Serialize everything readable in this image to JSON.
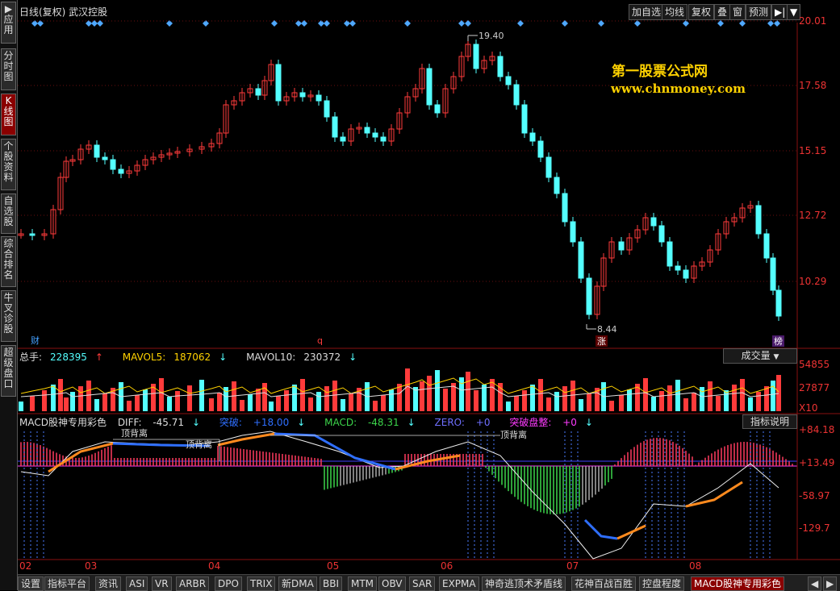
{
  "sidebar": {
    "items": [
      {
        "label": "▶应用",
        "active": false
      },
      {
        "label": "分时图",
        "active": false
      },
      {
        "label": "K线图",
        "active": true
      },
      {
        "label": "个股资料",
        "active": false
      },
      {
        "label": "自选股",
        "active": false
      },
      {
        "label": "综合排名",
        "active": false
      },
      {
        "label": "牛叉诊股",
        "active": false
      },
      {
        "label": "超级盘口",
        "active": false
      }
    ]
  },
  "header": {
    "title": "日线(复权) 武汉控股",
    "buttons": [
      "加自选",
      "均线",
      "复权",
      "叠",
      "窗",
      "预测"
    ]
  },
  "watermark": {
    "line1": "第一股票公式网",
    "line2": "www.chnmoney.com"
  },
  "price_axis": [
    "20.01",
    "17.58",
    "15.15",
    "12.72",
    "10.29"
  ],
  "price_annotations": {
    "high": "19.40",
    "low": "8.44"
  },
  "chart_markers": {
    "cai": "财",
    "q": "q",
    "zhang": "涨",
    "bang": "榜"
  },
  "volume": {
    "total_label": "总手:",
    "total_value": "228395",
    "mavol5_label": "MAVOL5:",
    "mavol5_value": "187062",
    "mavol10_label": "MAVOL10:",
    "mavol10_value": "230372",
    "selector": "成交量",
    "axis": [
      "54855",
      "27877",
      "X10"
    ]
  },
  "macd": {
    "name": "MACD股神专用彩色",
    "diff_label": "DIFF:",
    "diff_value": "-45.71",
    "dea_label": "突破:",
    "dea_value": "+18.00",
    "macd_label": "MACD:",
    "macd_value": "-48.31",
    "zero_label": "ZERO:",
    "zero_value": "+0",
    "tp_label": "突破盘整:",
    "tp_value": "+0",
    "help": "指标说明",
    "axis": [
      "+84.18",
      "+13.49",
      "-58.97",
      "-129.7"
    ],
    "annotations": [
      "顶背离",
      "顶背离",
      "顶背离"
    ]
  },
  "months": [
    "02",
    "03",
    "04",
    "05",
    "06",
    "07",
    "08"
  ],
  "tabs": [
    "设置",
    "指标平台",
    "资讯",
    "ASI",
    "VR",
    "ARBR",
    "DPO",
    "TRIX",
    "新DMA",
    "BBI",
    "MTM",
    "OBV",
    "SAR",
    "EXPMA",
    "神奇逃顶术矛盾线",
    "花神百战百胜",
    "控盘程度",
    "MACD股神专用彩色"
  ],
  "active_tab": "MACD股神专用彩色",
  "colors": {
    "up": "#ff3b3b",
    "down": "#54ffff",
    "ma_blue": "#2f6fff",
    "ma_orange": "#ff8a1e",
    "accent": "#ffd200"
  },
  "icons": [
    "diamond-marker-icon",
    "arrow-up-icon",
    "arrow-down-icon",
    "dropdown-icon",
    "play-icon",
    "scroll-left-icon",
    "scroll-right-icon"
  ]
}
